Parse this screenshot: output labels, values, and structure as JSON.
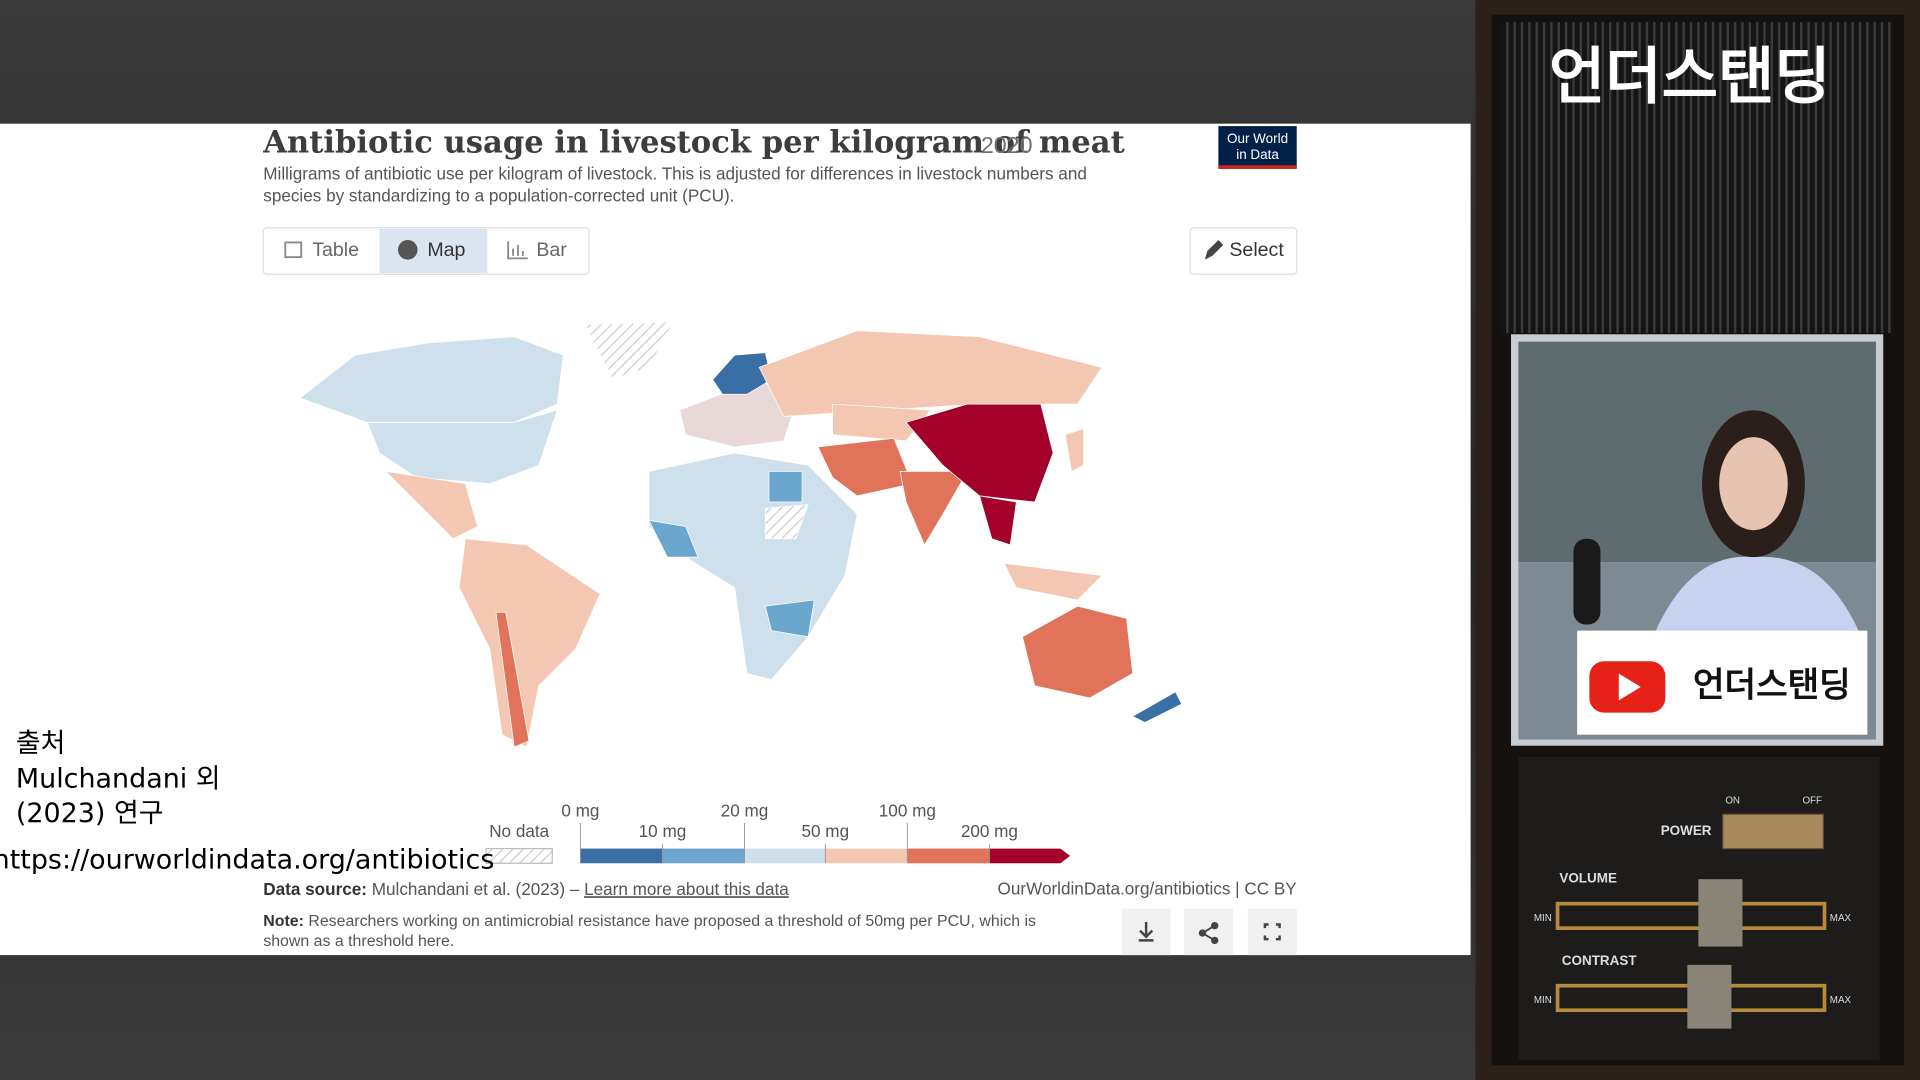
{
  "overlay": {
    "source_heading": "출처",
    "source_lines": [
      "Mulchandani 외",
      "(2023) 연구"
    ],
    "url": "https://ourworldindata.org/antibiotics"
  },
  "sidebar": {
    "channel_title": "언더스탠딩",
    "badge": "언더스탠딩",
    "controls": {
      "power": "POWER",
      "on": "ON",
      "off": "OFF",
      "volume": "VOLUME",
      "contrast": "CONTRAST",
      "min": "MIN",
      "max": "MAX"
    }
  },
  "header": {
    "title": "Antibiotic usage in livestock per kilogram of meat",
    "year": "2020",
    "subtitle": [
      "Milligrams of antibiotic use per kilogram of livestock. This is adjusted for differences in livestock numbers and",
      "species by standardizing to a population-corrected unit (PCU)."
    ],
    "logo": [
      "Our World",
      "in Data"
    ]
  },
  "tabs": [
    "Table",
    "Map",
    "Bar"
  ],
  "select": "Select",
  "legend": {
    "no_data": "No data",
    "labels": [
      "0 mg",
      "10 mg",
      "20 mg",
      "50 mg",
      "100 mg",
      "200 mg"
    ]
  },
  "footer": {
    "source_label": "Data source:",
    "source": "Mulchandani et al. (2023) –",
    "link": "Learn more about this data",
    "credit": "OurWorldinData.org/antibiotics | CC BY",
    "note_label": "Note:",
    "note": [
      "Researchers working on antimicrobial resistance have proposed a threshold of 50mg per PCU, which is",
      "shown as a threshold here."
    ]
  }
}
